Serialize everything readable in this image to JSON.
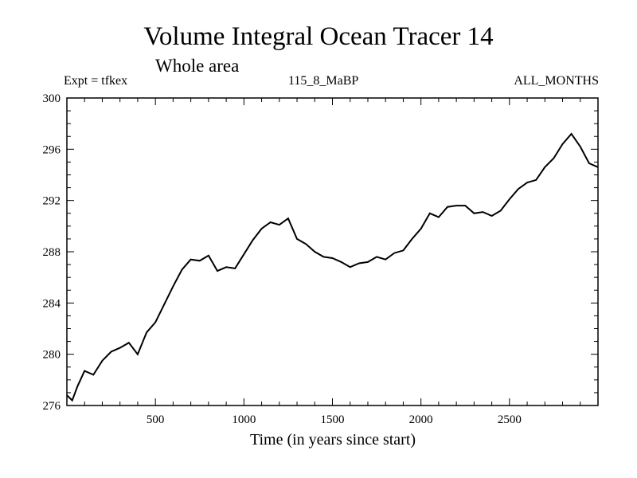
{
  "header": {
    "title": "Volume Integral Ocean Tracer 14",
    "subtitle": "Whole area",
    "expt": "Expt = tfkex",
    "run": "115_8_MaBP",
    "months": "ALL_MONTHS"
  },
  "chart_data": {
    "type": "line",
    "title": "Volume Integral Ocean Tracer 14",
    "subtitle": "Whole area",
    "xlabel": "Time (in years since start)",
    "ylabel": "",
    "xlim": [
      0,
      3000
    ],
    "ylim": [
      276,
      300
    ],
    "xticks": [
      500,
      1000,
      1500,
      2000,
      2500
    ],
    "yticks": [
      276,
      280,
      284,
      288,
      292,
      296,
      300
    ],
    "grid": false,
    "series": [
      {
        "x": [
          0,
          30,
          60,
          100,
          150,
          200,
          250,
          300,
          350,
          400,
          450,
          500,
          550,
          600,
          650,
          700,
          750,
          800,
          850,
          900,
          950,
          1000,
          1050,
          1100,
          1150,
          1200,
          1250,
          1300,
          1350,
          1400,
          1450,
          1500,
          1550,
          1600,
          1650,
          1700,
          1750,
          1800,
          1850,
          1900,
          1950,
          2000,
          2050,
          2100,
          2150,
          2200,
          2250,
          2300,
          2350,
          2400,
          2450,
          2500,
          2550,
          2600,
          2650,
          2700,
          2750,
          2800,
          2850,
          2900,
          2950,
          3000
        ],
        "y": [
          276.8,
          276.4,
          277.5,
          278.7,
          278.4,
          279.5,
          280.2,
          280.5,
          280.9,
          280.0,
          281.7,
          282.5,
          283.9,
          285.3,
          286.6,
          287.4,
          287.3,
          287.7,
          286.5,
          286.8,
          286.7,
          287.8,
          288.9,
          289.8,
          290.3,
          290.1,
          290.6,
          289.0,
          288.6,
          288.0,
          287.6,
          287.5,
          287.2,
          286.8,
          287.1,
          287.2,
          287.6,
          287.4,
          287.9,
          288.1,
          289.0,
          289.8,
          291.0,
          290.7,
          291.5,
          291.6,
          291.6,
          291.0,
          291.1,
          290.8,
          291.2,
          292.1,
          292.9,
          293.4,
          293.6,
          294.6,
          295.3,
          296.4,
          297.2,
          296.2,
          294.9,
          294.6
        ]
      }
    ]
  }
}
